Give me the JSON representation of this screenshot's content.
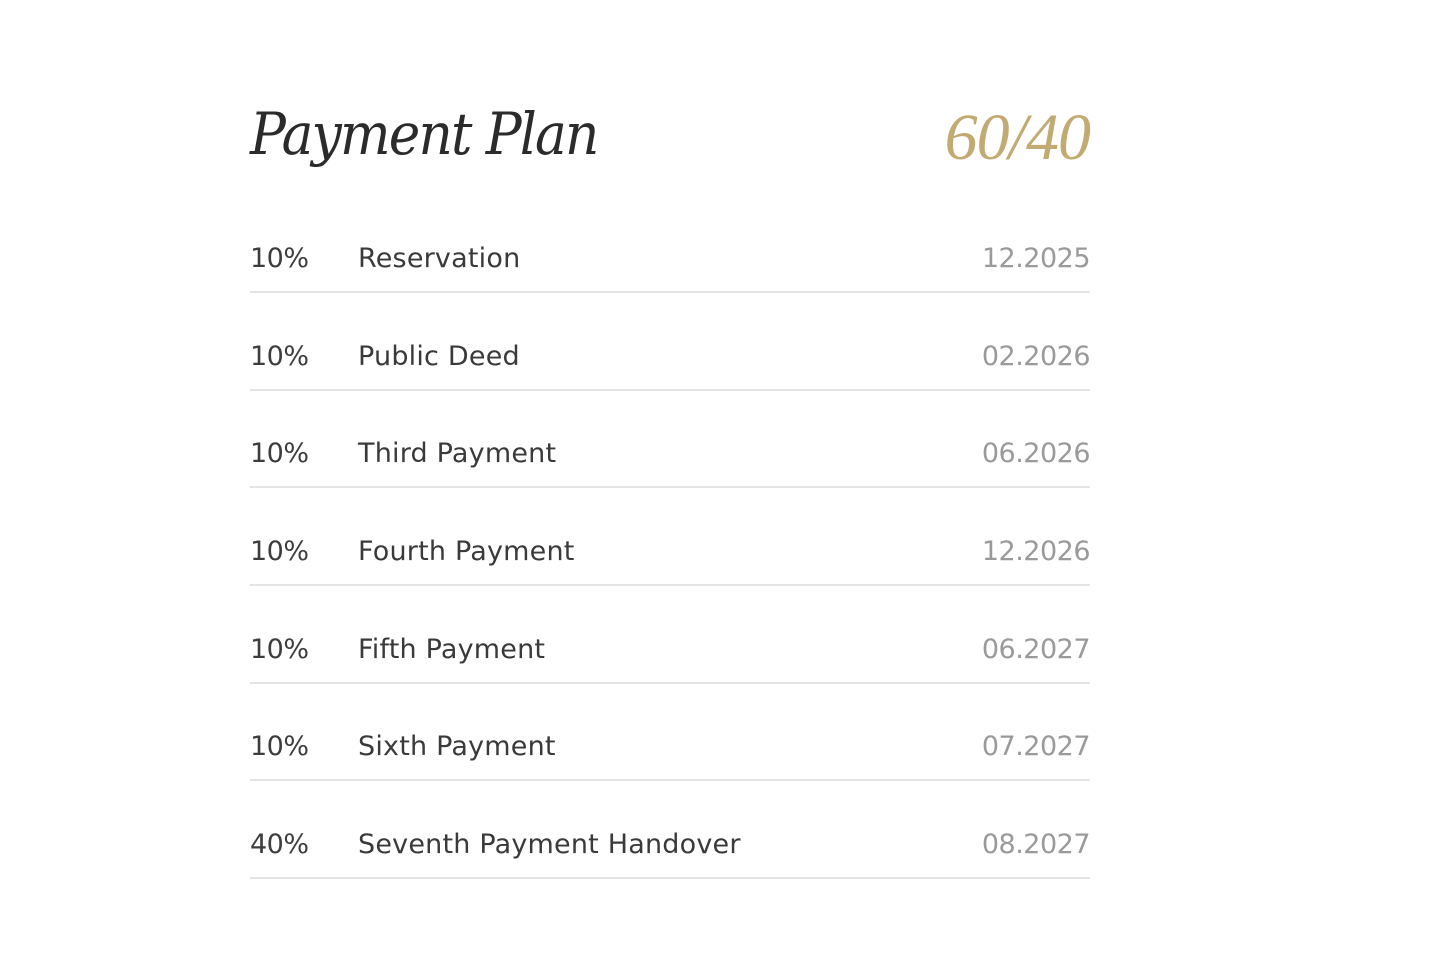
{
  "header": {
    "title": "Payment Plan",
    "ratio": "60/40",
    "accent_color": "#c2ab72"
  },
  "rows": [
    {
      "percent": "10%",
      "label": "Reservation",
      "date": "12.2025"
    },
    {
      "percent": "10%",
      "label": "Public Deed",
      "date": "02.2026"
    },
    {
      "percent": "10%",
      "label": "Third Payment",
      "date": "06.2026"
    },
    {
      "percent": "10%",
      "label": "Fourth Payment",
      "date": "12.2026"
    },
    {
      "percent": "10%",
      "label": "Fifth Payment",
      "date": "06.2027"
    },
    {
      "percent": "10%",
      "label": "Sixth Payment",
      "date": "07.2027"
    },
    {
      "percent": "40%",
      "label": "Seventh Payment Handover",
      "date": "08.2027"
    }
  ]
}
